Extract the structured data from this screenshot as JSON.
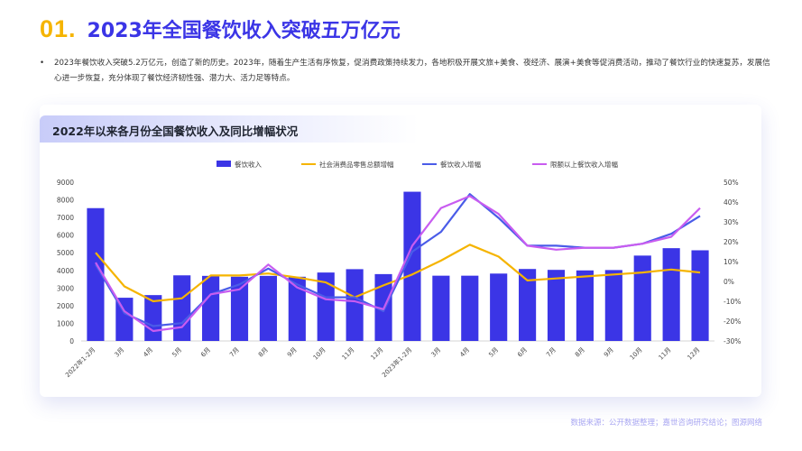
{
  "header": {
    "number": "01.",
    "title": "2023年全国餐饮收入突破五万亿元"
  },
  "bullet": {
    "dot": "•",
    "text": "2023年餐饮收入突破5.2万亿元，创造了新的历史。2023年，随着生产生活有序恢复，促消费政策持续发力，各地积极开展文旅+美食、夜经济、展演+美食等促消费活动，推动了餐饮行业的快速复苏，发展信心进一步恢复，充分体现了餐饮经济韧性强、潜力大、活力足等特点。"
  },
  "card": {
    "title": "2022年以来各月份全国餐饮收入及同比增幅状况"
  },
  "source": "数据来源：公开数据整理；嘉世咨询研究结论；图源网络",
  "chart_data": {
    "type": "bar",
    "categories": [
      "2022年1-2月",
      "3月",
      "4月",
      "5月",
      "6月",
      "7月",
      "8月",
      "9月",
      "10月",
      "11月",
      "12月",
      "2023年1-2月",
      "3月",
      "4月",
      "5月",
      "6月",
      "7月",
      "8月",
      "9月",
      "10月",
      "11月",
      "12月"
    ],
    "series": [
      {
        "name": "餐饮收入",
        "type": "bar",
        "axis": "left",
        "color": "#3b35e6",
        "values": [
          7530,
          2450,
          2600,
          3720,
          3690,
          3640,
          3690,
          3640,
          3880,
          4070,
          3790,
          8460,
          3700,
          3700,
          3820,
          4080,
          4030,
          4000,
          4020,
          4840,
          5260,
          5140
        ]
      },
      {
        "name": "社会消费品零售总额增幅",
        "type": "line",
        "axis": "right",
        "color": "#f5b400",
        "values": [
          14.5,
          -2.5,
          -10,
          -8.5,
          3,
          3,
          4,
          2,
          -0.5,
          -8,
          -2,
          3.5,
          10.5,
          18.5,
          12.5,
          0.5,
          1.5,
          2.5,
          3.5,
          4.5,
          6,
          4.5
        ]
      },
      {
        "name": "餐饮收入增幅",
        "type": "line",
        "axis": "right",
        "color": "#4a5ce8",
        "values": [
          8.5,
          -16,
          -22.5,
          -21,
          -6.5,
          -1.5,
          6.5,
          -1.5,
          -8,
          -8,
          -15,
          15,
          25,
          44,
          32,
          18,
          18,
          17,
          17,
          19,
          24,
          33
        ]
      },
      {
        "name": "限额以上餐饮收入增幅",
        "type": "line",
        "axis": "right",
        "color": "#c85cf0",
        "values": [
          9.5,
          -15,
          -25,
          -23,
          -6.5,
          -4,
          8.5,
          -3,
          -9,
          -10,
          -14,
          18,
          37,
          43,
          34,
          18,
          16,
          17,
          17,
          19,
          22.5,
          37
        ]
      }
    ],
    "y_left": {
      "min": 0,
      "max": 9000,
      "ticks": [
        0,
        1000,
        2000,
        3000,
        4000,
        5000,
        6000,
        7000,
        8000,
        9000
      ]
    },
    "y_right": {
      "min": -30,
      "max": 50,
      "ticks": [
        "-30%",
        "-20%",
        "-10%",
        "0%",
        "10%",
        "20%",
        "30%",
        "40%",
        "50%"
      ]
    },
    "legend_position": "top-center",
    "grid": false
  }
}
